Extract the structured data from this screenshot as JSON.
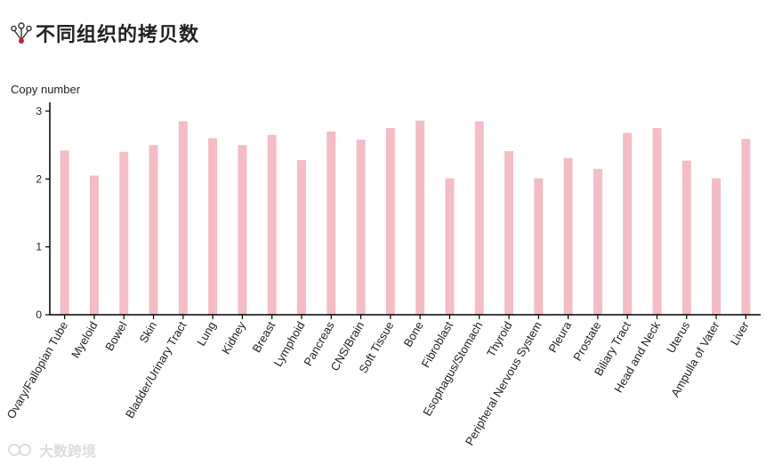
{
  "header": {
    "title": "不同组织的拷贝数",
    "icon": "network-node-icon"
  },
  "watermark": {
    "text": "大数跨境"
  },
  "colors": {
    "bar": "#f4bcc4",
    "axis": "#000000",
    "text": "#222222",
    "icon_accent": "#cc1f2d"
  },
  "chart_data": {
    "type": "bar",
    "title": "",
    "xlabel": "",
    "ylabel": "Copy number",
    "ylim": [
      0,
      3
    ],
    "yticks": [
      0,
      1,
      2,
      3
    ],
    "grid": false,
    "categories": [
      "Ovary/Fallopian Tube",
      "Myeloid",
      "Bowel",
      "Skin",
      "Bladder/Urinary Tract",
      "Lung",
      "Kidney",
      "Breast",
      "Lymphoid",
      "Pancreas",
      "CNS/Brain",
      "Soft Tissue",
      "Bone",
      "Fibroblast",
      "Esophagus/Stomach",
      "Thyroid",
      "Peripheral Nervous System",
      "Pleura",
      "Prostate",
      "Biliary Tract",
      "Head and Neck",
      "Uterus",
      "Ampulla of Vater",
      "Liver"
    ],
    "values": [
      2.42,
      2.05,
      2.4,
      2.5,
      2.85,
      2.6,
      2.5,
      2.65,
      2.28,
      2.7,
      2.58,
      2.75,
      2.86,
      2.01,
      2.85,
      2.41,
      2.01,
      2.31,
      2.15,
      2.68,
      2.75,
      2.27,
      2.01,
      2.59
    ]
  }
}
